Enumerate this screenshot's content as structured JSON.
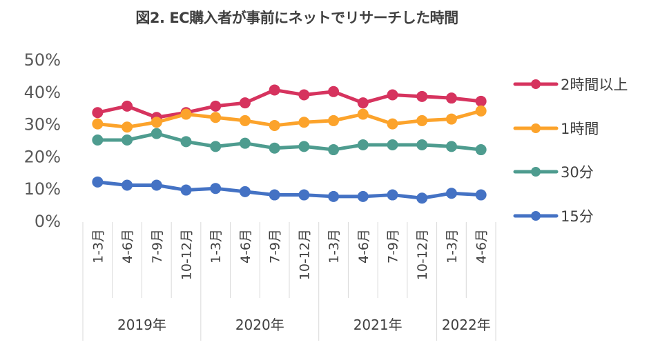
{
  "title": "図2. EC購入者が事前にネットでリサーチした時間",
  "chart_data": {
    "type": "line",
    "title": "図2. EC購入者が事前にネットでリサーチした時間",
    "categories": [
      "1-3月",
      "4-6月",
      "7-9月",
      "10-12月",
      "1-3月",
      "4-6月",
      "7-9月",
      "10-12月",
      "1-3月",
      "4-6月",
      "7-9月",
      "10-12月",
      "1-3月",
      "4-6月"
    ],
    "groups": [
      {
        "label": "2019年",
        "count": 4
      },
      {
        "label": "2020年",
        "count": 4
      },
      {
        "label": "2021年",
        "count": 4
      },
      {
        "label": "2022年",
        "count": 2
      }
    ],
    "y_ticks": [
      "0%",
      "10%",
      "20%",
      "30%",
      "40%",
      "50%"
    ],
    "ylim": [
      0,
      50
    ],
    "legend_position": "right",
    "series": [
      {
        "name": "2時間以上",
        "color": "#d6335e",
        "values": [
          33.5,
          35.5,
          32,
          33.5,
          35.5,
          36.5,
          40.5,
          39,
          40,
          36.5,
          39,
          38.5,
          38,
          37
        ]
      },
      {
        "name": "1時間",
        "color": "#fca32b",
        "values": [
          30,
          29,
          30.5,
          33,
          32,
          31,
          29.5,
          30.5,
          31,
          33,
          30,
          31,
          31.5,
          34
        ]
      },
      {
        "name": "30分",
        "color": "#4e9c8f",
        "values": [
          25,
          25,
          27,
          24.5,
          23,
          24,
          22.5,
          23,
          22,
          23.5,
          23.5,
          23.5,
          23,
          22
        ]
      },
      {
        "name": "15分",
        "color": "#4472c4",
        "values": [
          12,
          11,
          11,
          9.5,
          10,
          9,
          8,
          8,
          7.5,
          7.5,
          8,
          7,
          8.5,
          8
        ]
      }
    ]
  }
}
